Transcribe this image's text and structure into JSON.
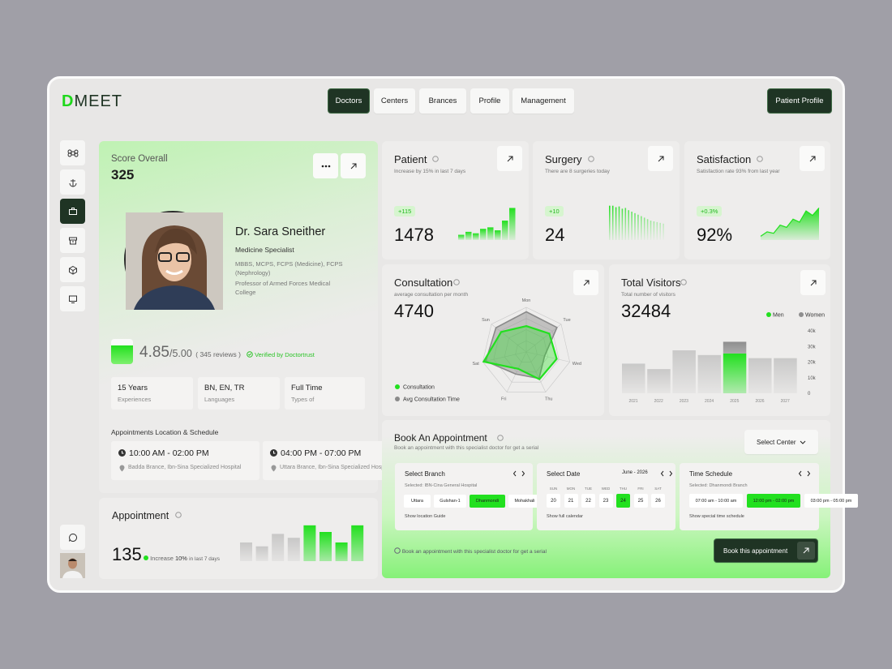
{
  "header": {
    "logo": {
      "mark": "D",
      "text": "MEET"
    },
    "nav": [
      "Doctors",
      "Centers",
      "Brances",
      "Profile",
      "Management"
    ],
    "active_nav": 0,
    "profile_button": "Patient Profile"
  },
  "profile": {
    "score_label": "Score Overall",
    "score": 325,
    "name": "Dr. Sara Sneither",
    "specialty": "Medicine Specialist",
    "degrees": "MBBS, MCPS, FCPS (Medicine), FCPS (Nephrology)",
    "position": "Professor of Armed Forces Medical College",
    "rating": "4.85",
    "rating_max": "/5.00",
    "reviews": "( 345 reviews )",
    "verified": "Verified by Doctortrust",
    "facts": [
      {
        "value": "15 Years",
        "label": "Experiences"
      },
      {
        "value": "BN, EN, TR",
        "label": "Languages"
      },
      {
        "value": "Full Time",
        "label": "Types of"
      }
    ],
    "schedule_title": "Appointments Location & Schedule",
    "schedules": [
      {
        "time": "10:00 AM - 02:00 PM",
        "place": "Badda Brance, Ibn-Sina Specialized Hospital"
      },
      {
        "time": "04:00 PM - 07:00 PM",
        "place": "Uttara Brance, Ibn-Sina Specialized Hospital"
      }
    ]
  },
  "appointment": {
    "title": "Appointment",
    "value": 135,
    "note_prefix": "Increase",
    "note_value": "10%",
    "note_suffix": "in last 7 days",
    "chart": {
      "type": "bar",
      "values": [
        48,
        38,
        70,
        60,
        92,
        75,
        48,
        92
      ],
      "ylim": [
        0,
        100
      ],
      "highlight_from": 4,
      "color": "#22e01f"
    }
  },
  "stats": [
    {
      "title": "Patient",
      "subtitle": "Increase by 15% in last 7 days",
      "badge": "+115",
      "value": 1478,
      "chart": {
        "type": "bar",
        "values": [
          14,
          22,
          18,
          30,
          34,
          26,
          52,
          86
        ],
        "ylim": [
          0,
          100
        ],
        "color": "#22e01f"
      }
    },
    {
      "title": "Surgery",
      "subtitle": "There are 8 surgeries today",
      "badge": "+10",
      "value": 24,
      "chart": {
        "type": "spike",
        "values": [
          92,
          92,
          88,
          90,
          84,
          86,
          80,
          76,
          72,
          68,
          64,
          60,
          56,
          52,
          50,
          48,
          46,
          44
        ],
        "ylim": [
          0,
          100
        ],
        "color": "#22e01f"
      }
    },
    {
      "title": "Satisfaction",
      "subtitle": "Satisfaction rate 93% from last year",
      "badge": "+0.3%",
      "value": "92%",
      "chart": {
        "type": "area",
        "values": [
          10,
          22,
          18,
          40,
          34,
          56,
          48,
          78,
          66,
          86
        ],
        "ylim": [
          0,
          100
        ],
        "color": "#22e01f"
      }
    }
  ],
  "consultation": {
    "title": "Consultation",
    "subtitle": "average consultation per month",
    "value": 4740,
    "chart": {
      "type": "radar",
      "axes": [
        "Mon",
        "Tue",
        "Wed",
        "Thu",
        "Fri",
        "Sat",
        "Sun"
      ],
      "rlim": [
        0,
        100
      ],
      "series": [
        {
          "name": "Consultation",
          "color": "#22e01f",
          "values": [
            58,
            66,
            70,
            68,
            42,
            98,
            72
          ]
        },
        {
          "name": "Avg Consultation Time",
          "color": "#8a8a8a",
          "values": [
            90,
            88,
            42,
            66,
            55,
            93,
            87
          ]
        }
      ]
    }
  },
  "visitors": {
    "title": "Total Visitors",
    "subtitle": "Total number of visitors",
    "value": 32484,
    "chart": {
      "type": "stacked-bar",
      "categories": [
        "2021",
        "2022",
        "2023",
        "2024",
        "2025",
        "2026",
        "2027"
      ],
      "series": [
        {
          "name": "Men",
          "color": "#22e01f",
          "values": [
            null,
            null,
            null,
            null,
            25500,
            null,
            null
          ]
        },
        {
          "name": "Women",
          "color": "#8e8e8e",
          "values": [
            19000,
            15500,
            27500,
            24500,
            7500,
            22500,
            22500
          ]
        }
      ],
      "ylim": [
        0,
        40000
      ],
      "yticks": [
        0,
        {
          "value": 10000,
          "label": "10k"
        },
        {
          "value": 20000,
          "label": "20k"
        },
        {
          "value": 30000,
          "label": "30k"
        },
        {
          "value": 40000,
          "label": "40k"
        }
      ],
      "highlight_index": 4,
      "grid": false
    }
  },
  "booking": {
    "title": "Book An Appointment",
    "subtitle": "Book an appointment with this specialist doctor for get a serial",
    "select": "Select Center",
    "branch": {
      "title": "Select Branch",
      "selected": "Selected: IBN-Cina General Hospital",
      "options": [
        "Uttara",
        "Gulshan-1",
        "Dhanmondi",
        "Mohakhali"
      ],
      "active": 2,
      "link": "Show location Guide"
    },
    "date": {
      "title": "Select Date",
      "month": "June - 2026",
      "days": [
        "SUN",
        "MON",
        "TUE",
        "WED",
        "THU",
        "FRI",
        "SAT"
      ],
      "dates": [
        20,
        21,
        22,
        23,
        24,
        25,
        26
      ],
      "active": 4,
      "link": "Show full calendar"
    },
    "time": {
      "title": "Time Schedule",
      "selected": "Selected: Dhanmondi Branch",
      "slots": [
        "07:00 am - 10:00 am",
        "12:00 pm - 02:00 pm",
        "03:00 pm - 05:00 pm"
      ],
      "active": 1,
      "link": "Show special time schedule"
    },
    "note": "Book an appointment with this specialist doctor for get a serial",
    "button": "Book this appointment"
  }
}
